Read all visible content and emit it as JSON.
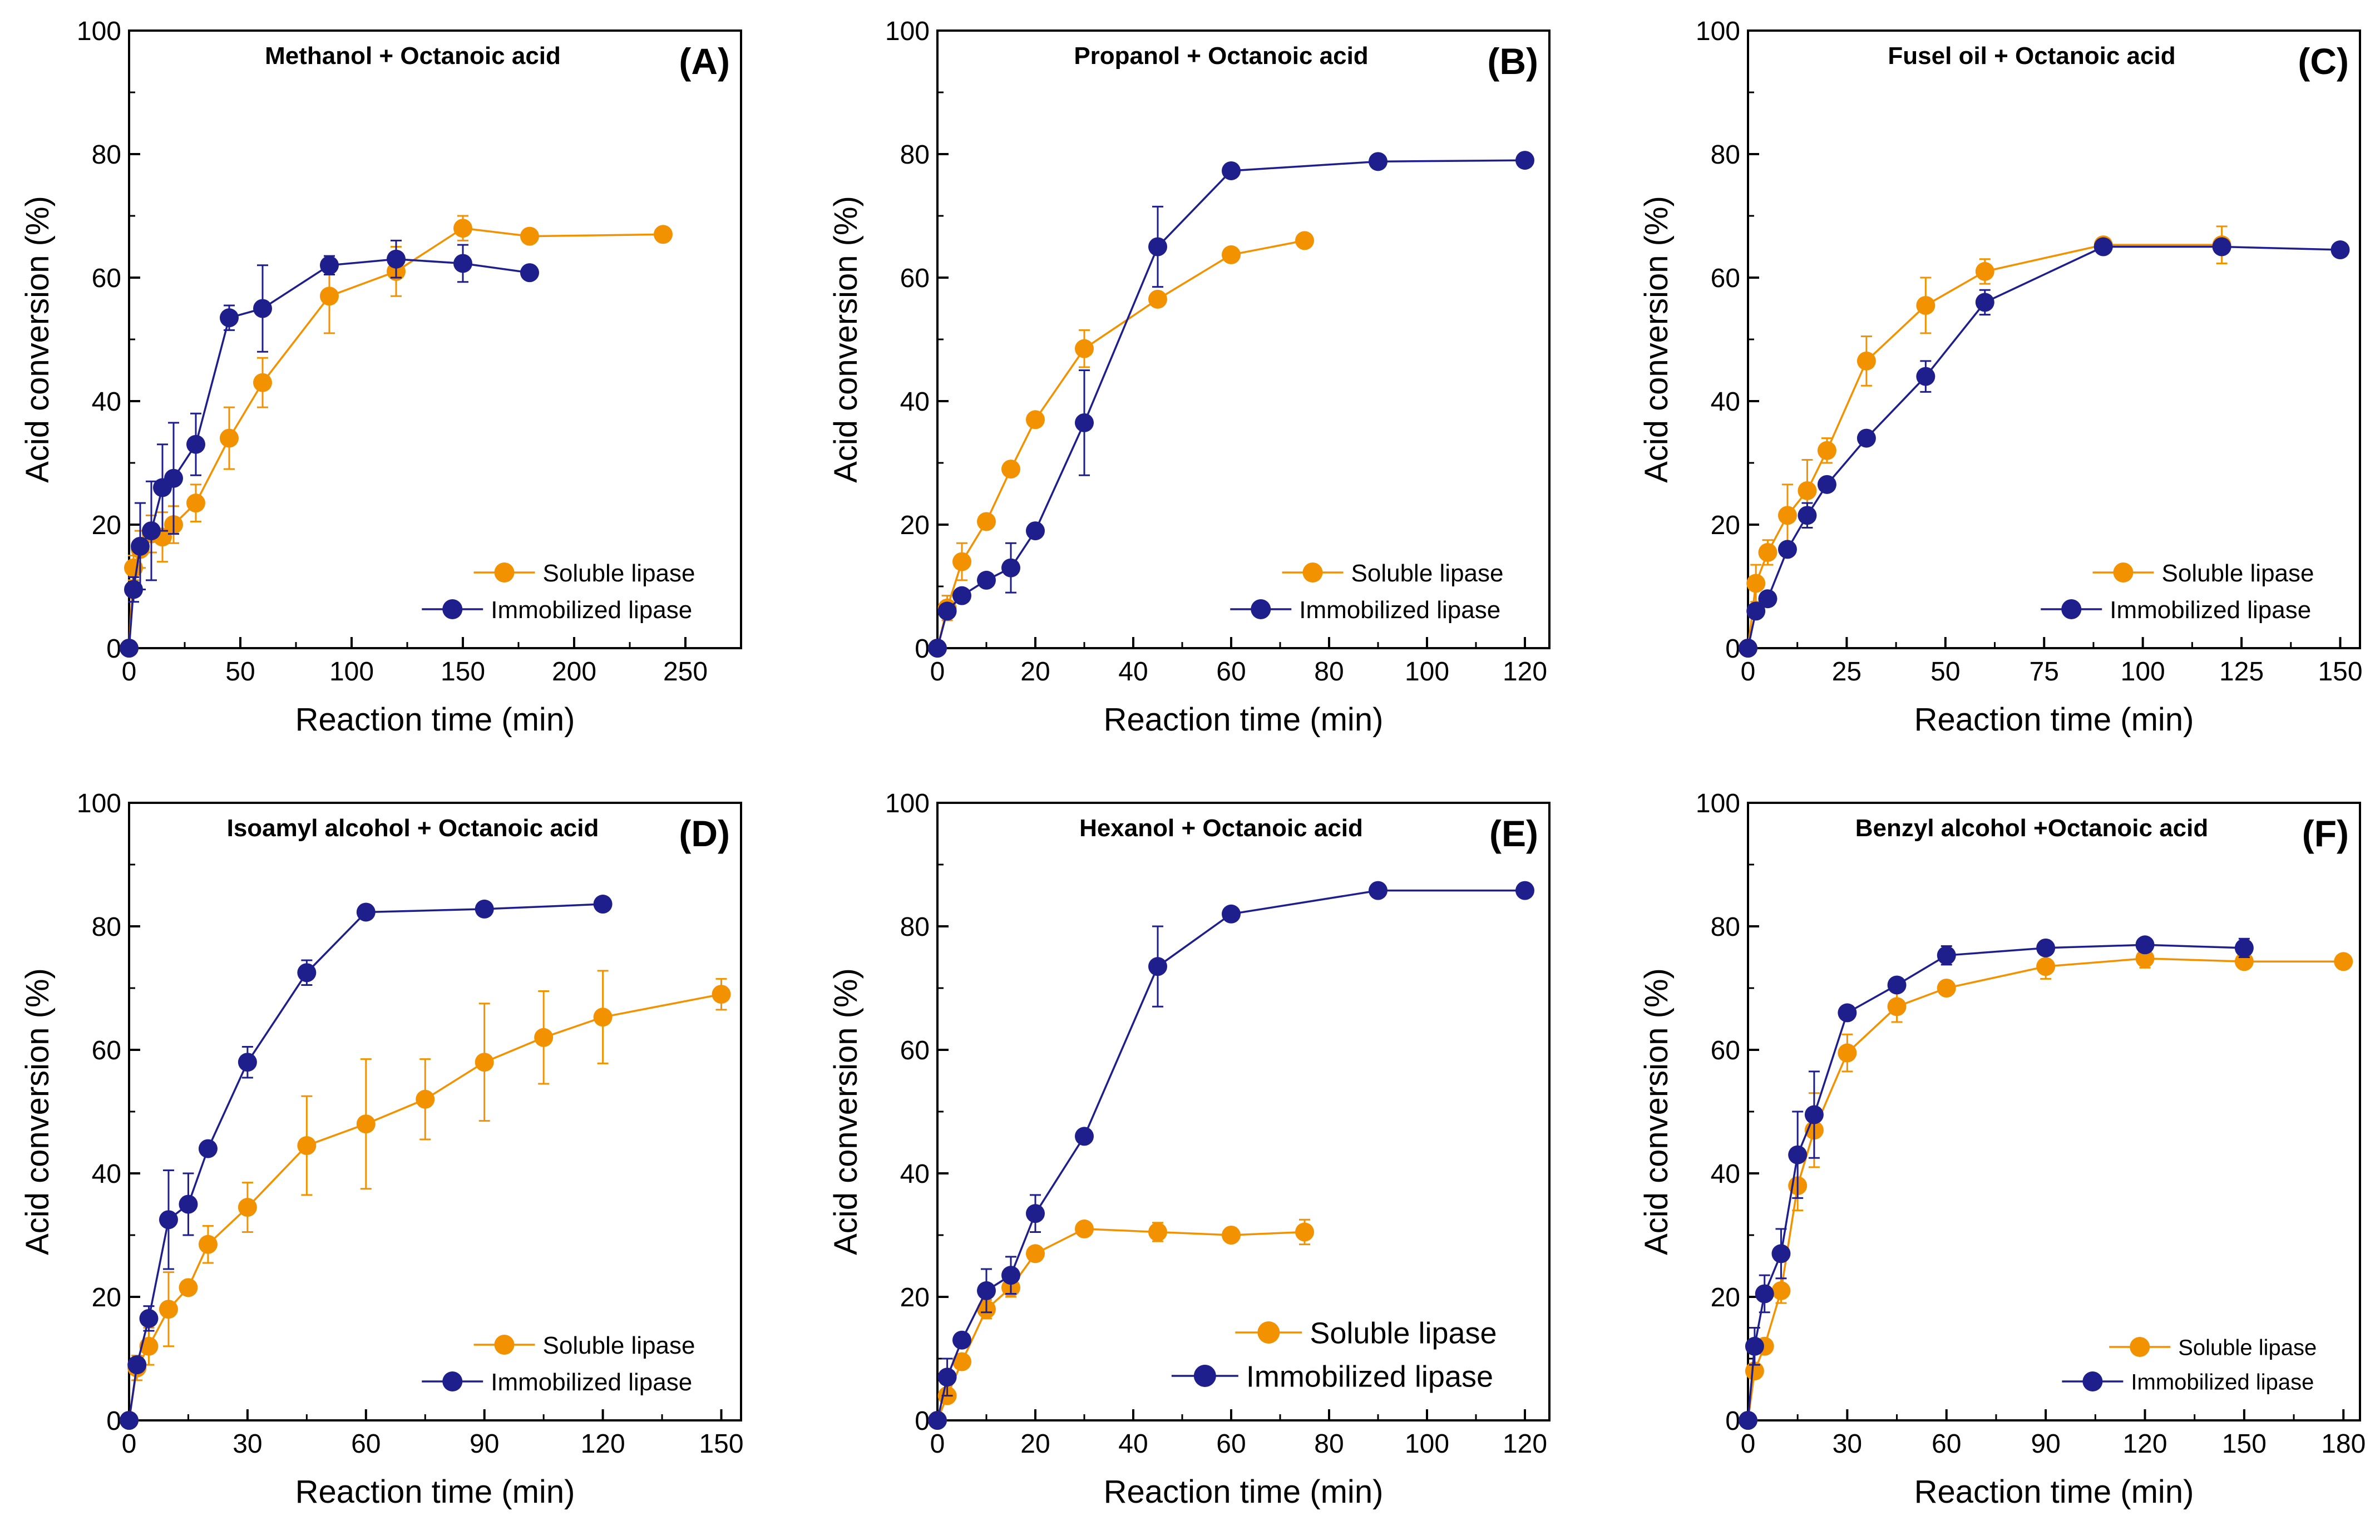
{
  "colors": {
    "soluble": "#F39200",
    "immobilized": "#1E1E8C",
    "axis": "#000000"
  },
  "chart_data": [
    {
      "type": "line",
      "title": "Methanol + Octanoic acid",
      "panel": "(A)",
      "xlabel": "Reaction time (min)",
      "ylabel": "Acid conversion (%)",
      "xlim": [
        0,
        275
      ],
      "ylim": [
        0,
        100
      ],
      "xticks": [
        0,
        50,
        100,
        150,
        200,
        250
      ],
      "yticks": [
        0,
        20,
        40,
        60,
        80,
        100
      ],
      "legend_position": "bottom-right",
      "legend_size": "normal",
      "series": [
        {
          "name": "Soluble lipase",
          "x": [
            0,
            2,
            5,
            10,
            15,
            20,
            30,
            45,
            60,
            90,
            120,
            150,
            180,
            240
          ],
          "y": [
            0,
            13,
            16,
            18.5,
            18,
            20,
            23.5,
            34,
            43,
            57,
            61,
            68,
            66.7,
            67
          ],
          "err": [
            0,
            2,
            3,
            3,
            4,
            3,
            3,
            5,
            4,
            6,
            4,
            2,
            0.5,
            0.5
          ]
        },
        {
          "name": "Immobilized lipase",
          "x": [
            0,
            2,
            5,
            10,
            15,
            20,
            30,
            45,
            60,
            90,
            120,
            150,
            180
          ],
          "y": [
            0,
            9.5,
            16.5,
            19,
            26,
            27.5,
            33,
            53.5,
            55,
            62,
            63,
            62.3,
            60.8
          ],
          "err": [
            0,
            2,
            7,
            8,
            7,
            9,
            5,
            2,
            7,
            1.5,
            3,
            3,
            0.5
          ]
        }
      ]
    },
    {
      "type": "line",
      "title": "Propanol + Octanoic acid",
      "panel": "(B)",
      "xlabel": "Reaction time (min)",
      "ylabel": "Acid conversion (%)",
      "xlim": [
        0,
        125
      ],
      "ylim": [
        0,
        100
      ],
      "xticks": [
        0,
        20,
        40,
        60,
        80,
        100,
        120
      ],
      "yticks": [
        0,
        20,
        40,
        60,
        80,
        100
      ],
      "legend_position": "bottom-right",
      "legend_size": "normal",
      "series": [
        {
          "name": "Soluble lipase",
          "x": [
            0,
            2,
            5,
            10,
            15,
            20,
            30,
            45,
            60,
            75
          ],
          "y": [
            0,
            6.5,
            14,
            20.5,
            29,
            37,
            48.5,
            56.5,
            63.7,
            66
          ],
          "err": [
            0,
            2,
            3,
            1,
            1,
            1,
            3,
            1,
            1,
            1
          ]
        },
        {
          "name": "Immobilized lipase",
          "x": [
            0,
            2,
            5,
            10,
            15,
            20,
            30,
            45,
            60,
            90,
            120
          ],
          "y": [
            0,
            6,
            8.5,
            11,
            13,
            19,
            36.5,
            65,
            77.3,
            78.8,
            79
          ],
          "err": [
            0,
            1,
            1,
            1,
            4,
            1,
            8.5,
            6.5,
            1,
            0.5,
            0.5
          ]
        }
      ]
    },
    {
      "type": "line",
      "title": "Fusel oil + Octanoic acid",
      "panel": "(C)",
      "xlabel": "Reaction time (min)",
      "ylabel": "Acid conversion (%)",
      "xlim": [
        0,
        155
      ],
      "ylim": [
        0,
        100
      ],
      "xticks": [
        0,
        25,
        50,
        75,
        100,
        125,
        150
      ],
      "yticks": [
        0,
        20,
        40,
        60,
        80,
        100
      ],
      "legend_position": "bottom-right",
      "legend_size": "normal",
      "series": [
        {
          "name": "Soluble lipase",
          "x": [
            0,
            2,
            5,
            10,
            15,
            20,
            30,
            45,
            60,
            90,
            120
          ],
          "y": [
            0,
            10.5,
            15.5,
            21.5,
            25.5,
            32,
            46.5,
            55.5,
            61,
            65.3,
            65.3
          ],
          "err": [
            0,
            3,
            2,
            5,
            5,
            2,
            4,
            4.5,
            2,
            1,
            3
          ]
        },
        {
          "name": "Immobilized lipase",
          "x": [
            0,
            2,
            5,
            10,
            15,
            20,
            30,
            45,
            60,
            90,
            120,
            150
          ],
          "y": [
            0,
            6,
            8,
            16,
            21.5,
            26.5,
            34,
            44,
            56,
            65,
            65,
            64.5
          ],
          "err": [
            0,
            1,
            1,
            1,
            2,
            1,
            1,
            2.5,
            2,
            0.5,
            0.5,
            0.5
          ]
        }
      ]
    },
    {
      "type": "line",
      "title": "Isoamyl alcohol + Octanoic acid",
      "panel": "(D)",
      "xlabel": "Reaction time (min)",
      "ylabel": "Acid conversion (%)",
      "xlim": [
        0,
        155
      ],
      "ylim": [
        0,
        100
      ],
      "xticks": [
        0,
        30,
        60,
        90,
        120,
        150
      ],
      "yticks": [
        0,
        20,
        40,
        60,
        80,
        100
      ],
      "legend_position": "bottom-right",
      "legend_size": "normal",
      "series": [
        {
          "name": "Soluble lipase",
          "x": [
            0,
            2,
            5,
            10,
            15,
            20,
            30,
            45,
            60,
            75,
            90,
            105,
            120,
            150
          ],
          "y": [
            0,
            8.5,
            12,
            18,
            21.5,
            28.5,
            34.5,
            44.5,
            48,
            52,
            58,
            62,
            65.3,
            69
          ],
          "err": [
            0,
            2,
            3,
            6,
            1,
            3,
            4,
            8,
            10.5,
            6.5,
            9.5,
            7.5,
            7.5,
            2.5
          ]
        },
        {
          "name": "Immobilized lipase",
          "x": [
            0,
            2,
            5,
            10,
            15,
            20,
            30,
            45,
            60,
            90,
            120
          ],
          "y": [
            0,
            9,
            16.5,
            32.5,
            35,
            44,
            58,
            72.5,
            82.3,
            82.8,
            83.6
          ],
          "err": [
            0,
            1,
            2,
            8,
            5,
            1,
            2.5,
            2,
            0.5,
            0.5,
            0.5
          ]
        }
      ]
    },
    {
      "type": "line",
      "title": "Hexanol + Octanoic acid",
      "panel": "(E)",
      "xlabel": "Reaction time (min)",
      "ylabel": "Acid conversion (%)",
      "xlim": [
        0,
        125
      ],
      "ylim": [
        0,
        100
      ],
      "xticks": [
        0,
        20,
        40,
        60,
        80,
        100,
        120
      ],
      "yticks": [
        0,
        20,
        40,
        60,
        80,
        100
      ],
      "legend_position": "bottom-right",
      "legend_size": "large",
      "series": [
        {
          "name": "Soluble lipase",
          "x": [
            0,
            2,
            5,
            10,
            15,
            20,
            30,
            45,
            60,
            75
          ],
          "y": [
            0,
            4,
            9.5,
            18,
            21.5,
            27,
            31,
            30.5,
            30,
            30.5
          ],
          "err": [
            0,
            1,
            1,
            1.5,
            1.5,
            1,
            1,
            1.5,
            1,
            2
          ]
        },
        {
          "name": "Immobilized lipase",
          "x": [
            0,
            2,
            5,
            10,
            15,
            20,
            30,
            45,
            60,
            90,
            120
          ],
          "y": [
            0,
            7,
            13,
            21,
            23.5,
            33.5,
            46,
            73.5,
            82,
            85.8,
            85.8
          ],
          "err": [
            0,
            3,
            1,
            3.5,
            3,
            3,
            1,
            6.5,
            1,
            0.5,
            0.5
          ]
        }
      ]
    },
    {
      "type": "line",
      "title": "Benzyl alcohol +Octanoic acid",
      "panel": "(F)",
      "xlabel": "Reaction time (min)",
      "ylabel": "Acid conversion (%)",
      "xlim": [
        0,
        185
      ],
      "ylim": [
        0,
        100
      ],
      "xticks": [
        0,
        30,
        60,
        90,
        120,
        150,
        180
      ],
      "yticks": [
        0,
        20,
        40,
        60,
        80,
        100
      ],
      "legend_position": "bottom-right",
      "legend_size": "small",
      "series": [
        {
          "name": "Soluble lipase",
          "x": [
            0,
            2,
            5,
            10,
            15,
            20,
            30,
            45,
            60,
            90,
            120,
            150,
            180
          ],
          "y": [
            0,
            8,
            12,
            21,
            38,
            47,
            59.5,
            67,
            70,
            73.5,
            74.8,
            74.3,
            74.3
          ],
          "err": [
            0,
            1,
            1,
            2,
            4,
            6,
            3,
            2.5,
            1,
            2,
            1.5,
            1,
            0.5
          ]
        },
        {
          "name": "Immobilized lipase",
          "x": [
            0,
            2,
            5,
            10,
            15,
            20,
            30,
            45,
            60,
            90,
            120,
            150
          ],
          "y": [
            0,
            12,
            20.5,
            27,
            43,
            49.5,
            66,
            70.5,
            75.3,
            76.5,
            77,
            76.5
          ],
          "err": [
            0,
            3,
            3,
            4,
            7,
            7,
            1,
            1,
            1.5,
            1,
            1,
            1.5
          ]
        }
      ]
    }
  ]
}
